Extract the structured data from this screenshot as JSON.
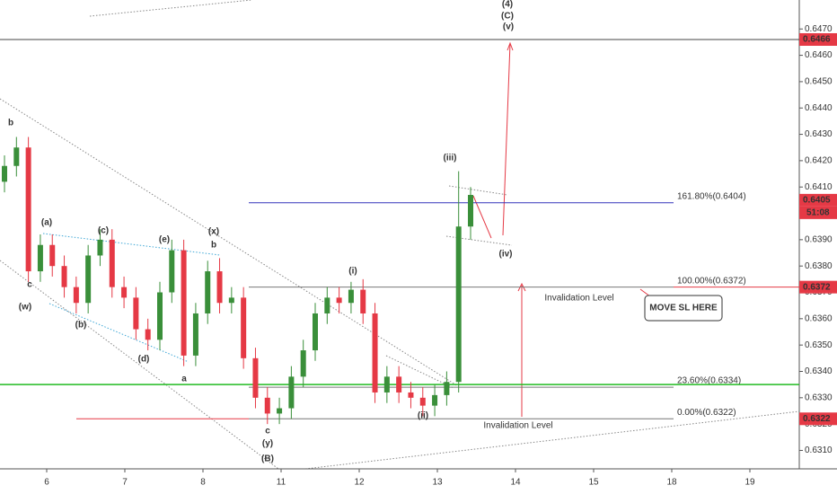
{
  "chart_data": {
    "type": "candlestick",
    "categories": [
      "6",
      "7",
      "8",
      "11",
      "12",
      "13",
      "14",
      "15",
      "18",
      "19"
    ],
    "ylim": [
      0.6303,
      0.6481
    ],
    "yticks": [
      {
        "value": 0.631,
        "label": "0.6310"
      },
      {
        "value": 0.632,
        "label": "0.6320"
      },
      {
        "value": 0.633,
        "label": "0.6330"
      },
      {
        "value": 0.634,
        "label": "0.6340"
      },
      {
        "value": 0.635,
        "label": "0.6350"
      },
      {
        "value": 0.636,
        "label": "0.6360"
      },
      {
        "value": 0.637,
        "label": "0.6370"
      },
      {
        "value": 0.638,
        "label": "0.6380"
      },
      {
        "value": 0.639,
        "label": "0.6390"
      },
      {
        "value": 0.64,
        "label": "0.6400"
      },
      {
        "value": 0.641,
        "label": "0.6410"
      },
      {
        "value": 0.642,
        "label": "0.6420"
      },
      {
        "value": 0.643,
        "label": "0.6430"
      },
      {
        "value": 0.644,
        "label": "0.6440"
      },
      {
        "value": 0.645,
        "label": "0.6450"
      },
      {
        "value": 0.646,
        "label": "0.6460"
      },
      {
        "value": 0.647,
        "label": "0.6470"
      }
    ],
    "up_color": "#3a8f3a",
    "down_color": "#e53945",
    "candles": {
      "open": [
        0.6412,
        0.6418,
        0.6425,
        0.6378,
        0.6388,
        0.638,
        0.6372,
        0.6366,
        0.6384,
        0.639,
        0.6372,
        0.6368,
        0.6356,
        0.6352,
        0.637,
        0.6386,
        0.6346,
        0.6362,
        0.6378,
        0.6366,
        0.6368,
        0.6345,
        0.633,
        0.6324,
        0.6326,
        0.6338,
        0.6348,
        0.6362,
        0.6368,
        0.6366,
        0.6371,
        0.6362,
        0.6332,
        0.6338,
        0.6332,
        0.633,
        0.6327,
        0.6331,
        0.6336,
        0.6395
      ],
      "high": [
        0.6422,
        0.6429,
        0.6429,
        0.6392,
        0.6392,
        0.6384,
        0.6376,
        0.6388,
        0.6394,
        0.6394,
        0.6376,
        0.6372,
        0.636,
        0.6374,
        0.639,
        0.639,
        0.6366,
        0.6382,
        0.6383,
        0.6372,
        0.6372,
        0.6349,
        0.6334,
        0.633,
        0.6342,
        0.6352,
        0.6366,
        0.6372,
        0.6372,
        0.6374,
        0.6375,
        0.6366,
        0.6342,
        0.6342,
        0.6336,
        0.6334,
        0.6335,
        0.634,
        0.6416,
        0.641
      ],
      "low": [
        0.6408,
        0.6414,
        0.6374,
        0.6374,
        0.6376,
        0.6368,
        0.6362,
        0.6362,
        0.638,
        0.6368,
        0.6364,
        0.6352,
        0.6348,
        0.6348,
        0.6366,
        0.6342,
        0.6342,
        0.6358,
        0.6362,
        0.6362,
        0.6341,
        0.6326,
        0.632,
        0.632,
        0.6322,
        0.6334,
        0.6344,
        0.6358,
        0.6362,
        0.6362,
        0.6358,
        0.6328,
        0.6328,
        0.6328,
        0.6326,
        0.6323,
        0.6323,
        0.6327,
        0.6332,
        0.639
      ],
      "close": [
        0.6418,
        0.6425,
        0.6378,
        0.6388,
        0.638,
        0.6372,
        0.6366,
        0.6384,
        0.639,
        0.6372,
        0.6368,
        0.6356,
        0.6352,
        0.637,
        0.6386,
        0.6346,
        0.6362,
        0.6378,
        0.6366,
        0.6368,
        0.6345,
        0.633,
        0.6324,
        0.6326,
        0.6338,
        0.6348,
        0.6362,
        0.6368,
        0.6366,
        0.6371,
        0.6362,
        0.6332,
        0.6338,
        0.6332,
        0.633,
        0.6327,
        0.6331,
        0.6336,
        0.6395,
        0.6407
      ]
    },
    "levels": [
      {
        "value": 0.6466,
        "color": "#444444"
      },
      {
        "value": 0.6404,
        "color": "#3333bb",
        "label": "161.80%(0.6404)"
      },
      {
        "value": 0.6372,
        "color": "#777777",
        "label": "100.00%(0.6372)"
      },
      {
        "value": 0.6334,
        "color": "#777777",
        "label": "23.60%(0.6334)"
      },
      {
        "value": 0.6322,
        "color": "#777777",
        "label": "0.00%(0.6322)"
      },
      {
        "value": 0.6335,
        "color": "#22bb22"
      },
      {
        "value": 0.6322,
        "color": "#e53945"
      },
      {
        "value": 0.6372,
        "color": "#e53945"
      }
    ],
    "price_labels": [
      {
        "value": 0.6466,
        "label": "0.6466"
      },
      {
        "value": 0.6405,
        "label": "0.6405"
      },
      {
        "value": 0.6372,
        "label": "0.6372"
      },
      {
        "value": 0.6322,
        "label": "0.6322"
      }
    ],
    "countdown": "51:08",
    "annotations": [
      {
        "text": "b",
        "color": "#c0392b"
      },
      {
        "text": "c",
        "color": "#c0392b"
      },
      {
        "text": "(w)",
        "color": "#4f6f3f"
      },
      {
        "text": "(a)",
        "color": "#1fa59a"
      },
      {
        "text": "(b)",
        "color": "#1fa59a"
      },
      {
        "text": "(c)",
        "color": "#1fa59a"
      },
      {
        "text": "(d)",
        "color": "#1fa59a"
      },
      {
        "text": "(e)",
        "color": "#1fa59a"
      },
      {
        "text": "(x)",
        "color": "#4f6f3f"
      },
      {
        "text": "b",
        "color": "#c0392b"
      },
      {
        "text": "a",
        "color": "#c0392b"
      },
      {
        "text": "c",
        "color": "#4f4f4f"
      },
      {
        "text": "(y)",
        "color": "#4f6f3f"
      },
      {
        "text": "(B)",
        "color": "#c0392b"
      },
      {
        "text": "(i)",
        "color": "#c0392b"
      },
      {
        "text": "(ii)",
        "color": "#c0392b"
      },
      {
        "text": "(iii)",
        "color": "#c0392b"
      },
      {
        "text": "(iv)",
        "color": "#c0392b"
      },
      {
        "text": "(v)",
        "color": "#c0392b"
      },
      {
        "text": "(4)",
        "color": "#34495e"
      },
      {
        "text": "(C)",
        "color": "#c0392b"
      }
    ],
    "notes": [
      "Invalidation Level",
      "Invalidation Level",
      "MOVE SL HERE"
    ]
  }
}
